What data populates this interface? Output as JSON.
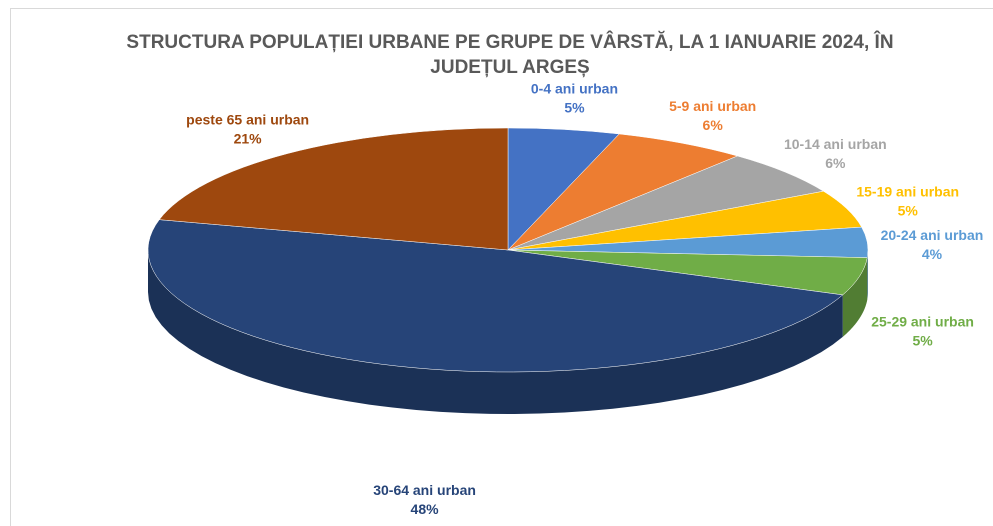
{
  "chart_data": {
    "type": "pie3d",
    "title": "STRUCTURA POPULAȚIEI URBANE PE GRUPE DE VÂRSTĂ, LA 1 IANUARIE 2024, ÎN JUDEȚUL ARGEȘ",
    "categories": [
      "0-4 ani urban",
      "5-9 ani urban",
      "10-14 ani urban",
      "15-19 ani urban",
      "20-24 ani urban",
      "25-29 ani urban",
      "30-64 ani urban",
      "peste 65 ani urban"
    ],
    "values": [
      5,
      6,
      6,
      5,
      4,
      5,
      48,
      21
    ],
    "value_labels": [
      "5%",
      "6%",
      "6%",
      "5%",
      "4%",
      "5%",
      "48%",
      "21%"
    ],
    "colors": [
      "#4472c4",
      "#ed7d31",
      "#a5a5a5",
      "#ffc000",
      "#5b9bd5",
      "#70ad47",
      "#264478",
      "#9e480e"
    ]
  }
}
